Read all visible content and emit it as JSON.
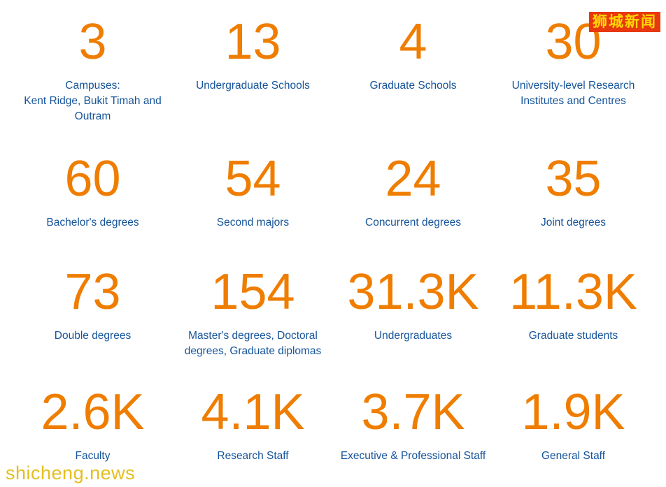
{
  "watermarks": {
    "badge_text": "狮城新闻",
    "site_text": "shicheng.news"
  },
  "colors": {
    "stat_value": "#EF7D00",
    "stat_label": "#15549A",
    "badge_bg": "#E8380D",
    "badge_text": "#FFD800",
    "site_text": "#E5BE1E"
  },
  "stats": [
    {
      "value": "3",
      "label": "Campuses:\nKent Ridge, Bukit Timah and Outram"
    },
    {
      "value": "13",
      "label": "Undergraduate Schools"
    },
    {
      "value": "4",
      "label": "Graduate Schools"
    },
    {
      "value": "30",
      "label": "University-level Research Institutes and Centres"
    },
    {
      "value": "60",
      "label": "Bachelor's degrees"
    },
    {
      "value": "54",
      "label": "Second majors"
    },
    {
      "value": "24",
      "label": "Concurrent degrees"
    },
    {
      "value": "35",
      "label": "Joint degrees"
    },
    {
      "value": "73",
      "label": "Double degrees"
    },
    {
      "value": "154",
      "label": "Master's degrees, Doctoral degrees, Graduate diplomas"
    },
    {
      "value": "31.3K",
      "label": "Undergraduates"
    },
    {
      "value": "11.3K",
      "label": "Graduate students"
    },
    {
      "value": "2.6K",
      "label": "Faculty"
    },
    {
      "value": "4.1K",
      "label": "Research Staff"
    },
    {
      "value": "3.7K",
      "label": "Executive & Professional Staff"
    },
    {
      "value": "1.9K",
      "label": "General Staff"
    }
  ]
}
